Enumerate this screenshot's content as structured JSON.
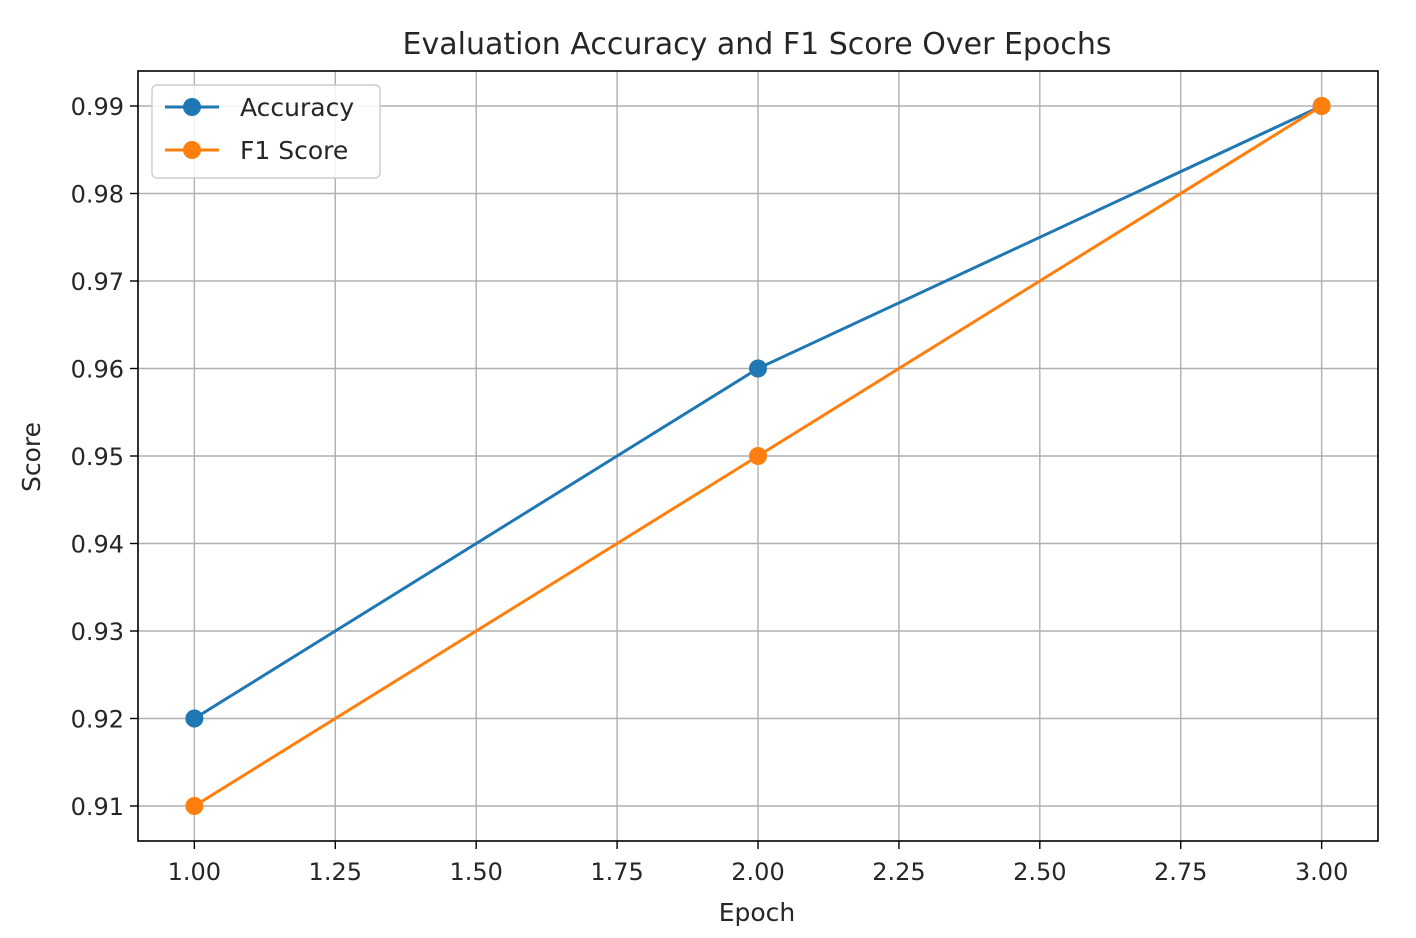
{
  "chart_data": {
    "type": "line",
    "title": "Evaluation Accuracy and F1 Score Over Epochs",
    "xlabel": "Epoch",
    "ylabel": "Score",
    "x": [
      1,
      2,
      3
    ],
    "xlim": [
      0.9,
      3.1
    ],
    "ylim": [
      0.906,
      0.994
    ],
    "xticks": [
      1.0,
      1.25,
      1.5,
      1.75,
      2.0,
      2.25,
      2.5,
      2.75,
      3.0
    ],
    "xtick_labels": [
      "1.00",
      "1.25",
      "1.50",
      "1.75",
      "2.00",
      "2.25",
      "2.50",
      "2.75",
      "3.00"
    ],
    "yticks": [
      0.91,
      0.92,
      0.93,
      0.94,
      0.95,
      0.96,
      0.97,
      0.98,
      0.99
    ],
    "ytick_labels": [
      "0.91",
      "0.92",
      "0.93",
      "0.94",
      "0.95",
      "0.96",
      "0.97",
      "0.98",
      "0.99"
    ],
    "grid": true,
    "legend_position": "top-left",
    "series": [
      {
        "name": "Accuracy",
        "values": [
          0.92,
          0.96,
          0.99
        ],
        "color": "#1f77b4",
        "marker": "circle"
      },
      {
        "name": "F1 Score",
        "values": [
          0.91,
          0.95,
          0.99
        ],
        "color": "#ff7f0e",
        "marker": "circle"
      }
    ]
  }
}
